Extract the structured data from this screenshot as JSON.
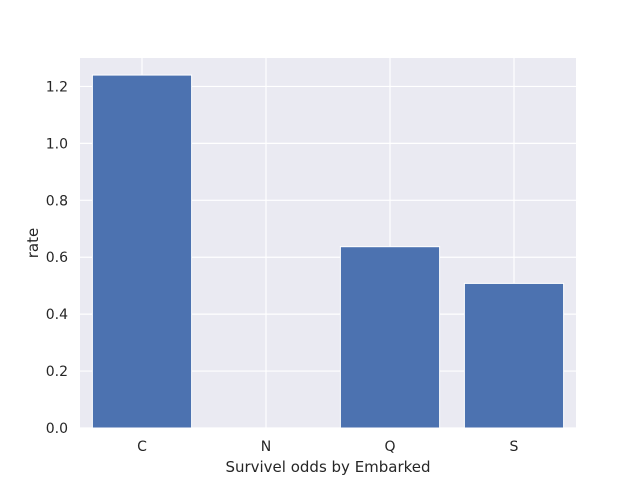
{
  "chart_data": {
    "type": "bar",
    "title": "",
    "xlabel": "Survivel odds by Embarked",
    "ylabel": "rate",
    "categories": [
      "C",
      "N",
      "Q",
      "S"
    ],
    "values": [
      1.24,
      0,
      0.637,
      0.508
    ],
    "ylim": [
      0,
      1.3
    ],
    "yticks": [
      0.0,
      0.2,
      0.4,
      0.6,
      0.8,
      1.0,
      1.2
    ],
    "ytick_labels": [
      "0.0",
      "0.2",
      "0.4",
      "0.6",
      "0.8",
      "1.0",
      "1.2"
    ],
    "grid": true,
    "colors": {
      "bar": "#4c72b0",
      "plot_background": "#eaeaf2",
      "grid": "#ffffff",
      "text": "#262626"
    }
  }
}
